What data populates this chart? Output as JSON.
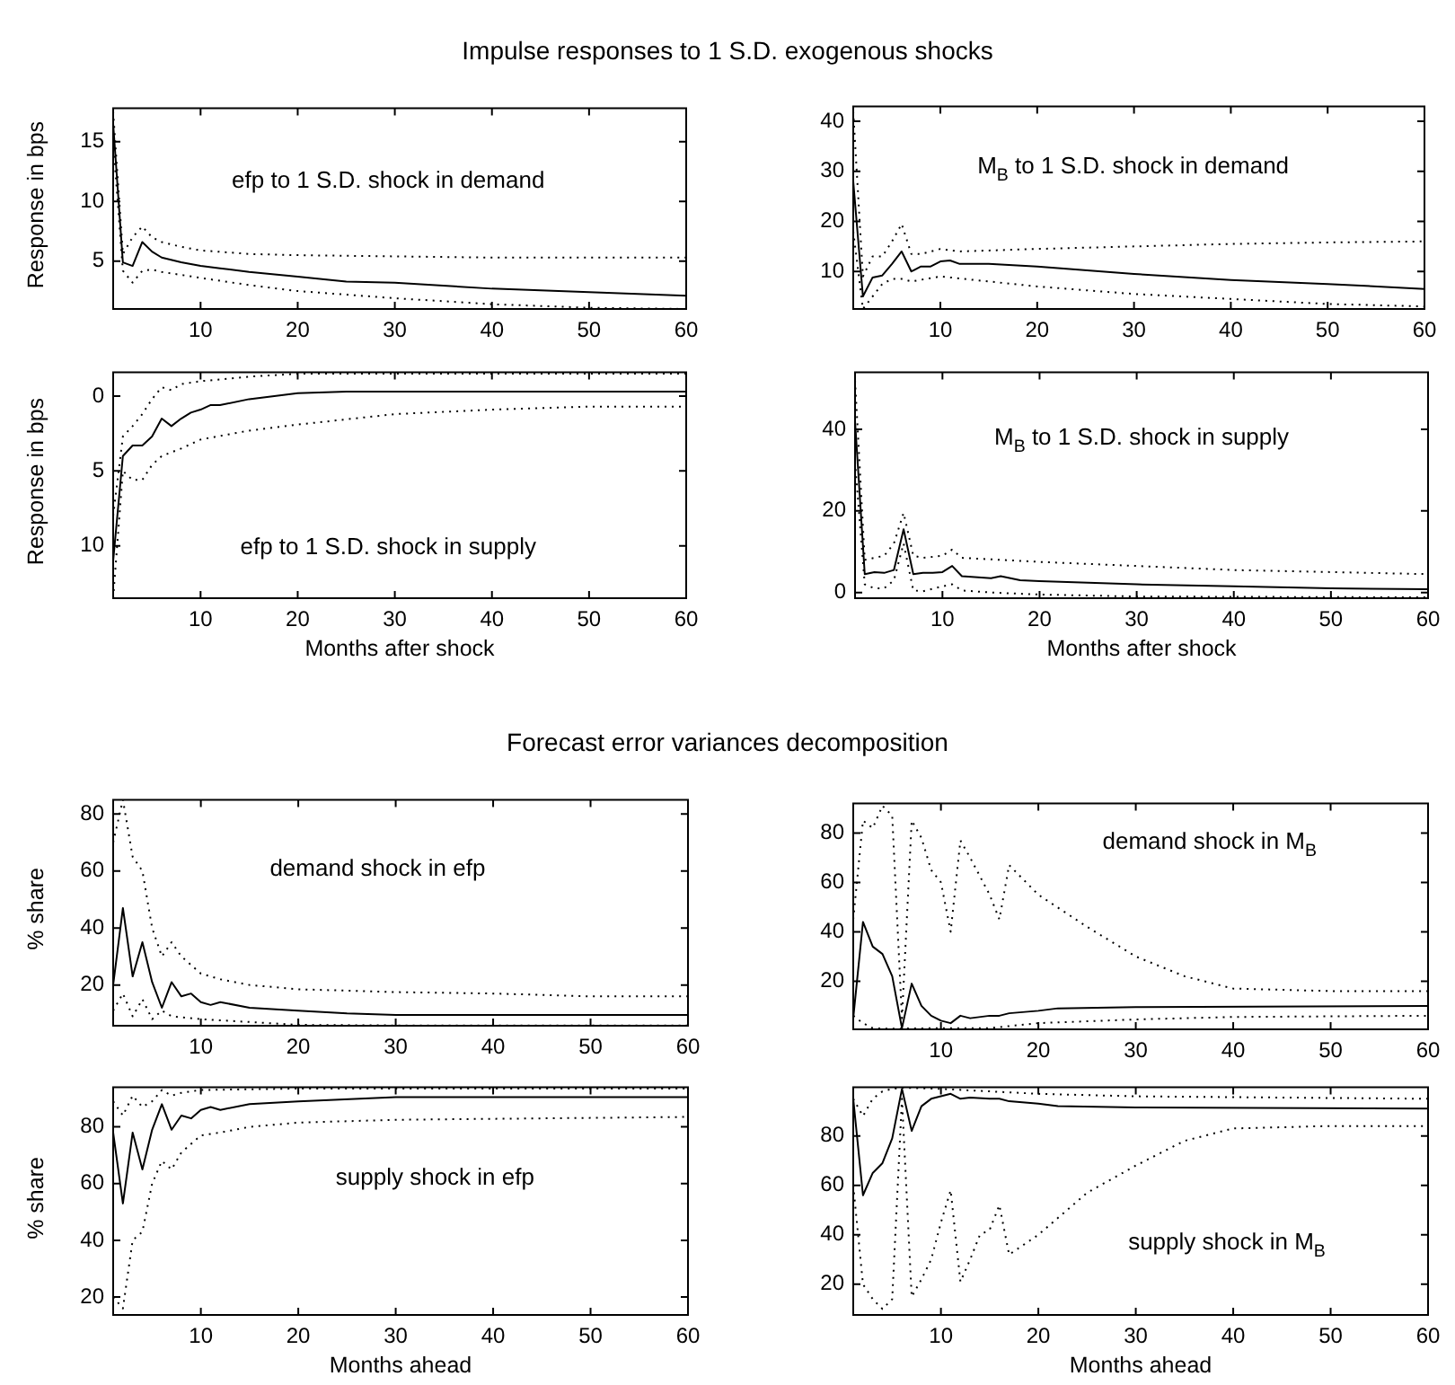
{
  "chart_data": [
    {
      "type": "line",
      "title": "Impulse responses to 1 S.D. exogenous shocks",
      "ylabel": "Response in bps",
      "annotations": [
        "efp to 1 S.D. shock in demand"
      ],
      "xlim": [
        1,
        60
      ],
      "xticks": [
        10,
        20,
        30,
        40,
        50,
        60
      ],
      "ylim": [
        1,
        17.8
      ],
      "yticks": [
        5,
        10,
        15
      ],
      "series": [
        {
          "color": "#000000",
          "line_style": "solid",
          "x": [
            1,
            2,
            3,
            4,
            5,
            6,
            8,
            10,
            12,
            15,
            20,
            25,
            30,
            40,
            50,
            60
          ],
          "values": [
            16.5,
            4.9,
            4.6,
            6.6,
            5.8,
            5.3,
            4.9,
            4.6,
            4.4,
            4.1,
            3.7,
            3.3,
            3.2,
            2.7,
            2.4,
            2.1
          ]
        },
        {
          "color": "#000000",
          "line_style": "dotted",
          "x": [
            1,
            2,
            3,
            4,
            5,
            6,
            8,
            10,
            15,
            20,
            30,
            40,
            60
          ],
          "values": [
            17.5,
            5.6,
            7,
            7.9,
            7,
            6.6,
            6.2,
            5.9,
            5.6,
            5.5,
            5.4,
            5.3,
            5.3
          ]
        },
        {
          "color": "#000000",
          "line_style": "dotted",
          "x": [
            1,
            2,
            3,
            4,
            5,
            6,
            10,
            15,
            20,
            30,
            40,
            50,
            60
          ],
          "values": [
            15,
            4.2,
            3.2,
            4.2,
            4.3,
            4.1,
            3.6,
            3.0,
            2.5,
            1.9,
            1.4,
            1.1,
            1.0
          ]
        }
      ]
    },
    {
      "type": "line",
      "ylabel": "Response in bps",
      "xlabel": "Months after shock",
      "annotations": [
        "efp to 1 S.D. shock in supply"
      ],
      "xlim": [
        1,
        60
      ],
      "xticks": [
        10,
        20,
        30,
        40,
        50,
        60
      ],
      "ylim": [
        13.5,
        -1.6
      ],
      "yticks": [
        0,
        5,
        10
      ],
      "series": [
        {
          "color": "#000000",
          "line_style": "solid",
          "x": [
            1,
            2,
            3,
            4,
            5,
            6,
            7,
            8,
            9,
            10,
            11,
            12,
            15,
            20,
            25,
            30,
            60
          ],
          "values": [
            11,
            4,
            3.3,
            3.3,
            2.7,
            1.5,
            2,
            1.5,
            1.1,
            0.9,
            0.6,
            0.6,
            0.2,
            -0.2,
            -0.3,
            -0.3,
            -0.3
          ]
        },
        {
          "color": "#000000",
          "line_style": "dotted",
          "x": [
            1,
            2,
            3,
            4,
            5,
            6,
            7,
            8,
            10,
            15,
            20,
            60
          ],
          "values": [
            8,
            2.7,
            2,
            1.2,
            0.2,
            -0.6,
            -0.4,
            -0.8,
            -1,
            -1.3,
            -1.5,
            -1.5
          ]
        },
        {
          "color": "#000000",
          "line_style": "dotted",
          "x": [
            1,
            2,
            3,
            4,
            5,
            6,
            8,
            10,
            15,
            20,
            30,
            40,
            50,
            60
          ],
          "values": [
            13.5,
            5,
            5.6,
            5.6,
            4.6,
            4,
            3.5,
            2.9,
            2.3,
            1.9,
            1.2,
            0.9,
            0.7,
            0.7
          ]
        }
      ]
    },
    {
      "type": "line",
      "annotations": [
        "M$_{B}$ to 1 S.D. shock in demand"
      ],
      "xlim": [
        1,
        60
      ],
      "xticks": [
        10,
        20,
        30,
        40,
        50,
        60
      ],
      "ylim": [
        2.5,
        43
      ],
      "yticks": [
        10,
        20,
        30,
        40
      ],
      "series": [
        {
          "color": "#000000",
          "line_style": "solid",
          "x": [
            1,
            2,
            3,
            4,
            5,
            6,
            7,
            8,
            9,
            10,
            11,
            12,
            15,
            20,
            30,
            40,
            50,
            60
          ],
          "values": [
            28,
            5,
            8.8,
            9.2,
            11.5,
            14,
            10,
            11,
            11,
            12,
            12.2,
            11.5,
            11.5,
            11,
            9.5,
            8.3,
            7.5,
            6.5
          ]
        },
        {
          "color": "#000000",
          "line_style": "dotted",
          "x": [
            1,
            2,
            3,
            4,
            5,
            6,
            7,
            8,
            10,
            12,
            20,
            30,
            40,
            50,
            60
          ],
          "values": [
            42,
            9,
            13,
            13,
            16,
            19.5,
            13.5,
            13.5,
            14.5,
            14,
            14.5,
            15,
            15.5,
            15.8,
            16
          ]
        },
        {
          "color": "#000000",
          "line_style": "dotted",
          "x": [
            1,
            2,
            3,
            4,
            5,
            6,
            7,
            10,
            15,
            20,
            30,
            40,
            50,
            60
          ],
          "values": [
            18,
            2.5,
            5,
            7.5,
            8.5,
            8.5,
            8,
            9,
            8,
            7,
            5.5,
            4.5,
            3.5,
            3
          ]
        }
      ]
    },
    {
      "type": "line",
      "xlabel": "Months after shock",
      "annotations": [
        "M$_{B}$ to 1 S.D. shock in supply"
      ],
      "xlim": [
        1,
        60
      ],
      "xticks": [
        10,
        20,
        30,
        40,
        50,
        60
      ],
      "ylim": [
        -1.4,
        54
      ],
      "yticks": [
        0,
        20,
        40
      ],
      "series": [
        {
          "color": "#000000",
          "line_style": "solid",
          "x": [
            1,
            2,
            3,
            4,
            5,
            6,
            7,
            8,
            9,
            10,
            11,
            12,
            15,
            16,
            18,
            20,
            30,
            40,
            50,
            60
          ],
          "values": [
            42,
            4.5,
            5,
            4.8,
            5.5,
            15.5,
            4.5,
            4.8,
            4.8,
            5,
            6.5,
            4,
            3.5,
            4,
            3,
            2.8,
            2,
            1.5,
            1,
            0.8
          ]
        },
        {
          "color": "#000000",
          "line_style": "dotted",
          "x": [
            1,
            2,
            3,
            4,
            5,
            6,
            7,
            8,
            10,
            11,
            12,
            20,
            30,
            40,
            50,
            60
          ],
          "values": [
            52,
            8,
            8.5,
            9,
            12,
            19.5,
            9,
            8.5,
            9,
            10.5,
            8.5,
            7.5,
            6.5,
            5.5,
            5,
            4.5
          ]
        },
        {
          "color": "#000000",
          "line_style": "dotted",
          "x": [
            1,
            2,
            3,
            4,
            5,
            6,
            7,
            8,
            10,
            11,
            12,
            15,
            20,
            30,
            60
          ],
          "values": [
            32,
            2,
            1,
            1,
            3,
            12,
            0.5,
            0.3,
            1.5,
            2,
            0.5,
            0,
            -0.5,
            -1,
            -1.2
          ]
        }
      ]
    },
    {
      "type": "line",
      "title": "Forecast error variances decomposition",
      "ylabel": "% share",
      "annotations": [
        "demand shock in  efp"
      ],
      "xlim": [
        1,
        60
      ],
      "xticks": [
        10,
        20,
        30,
        40,
        50,
        60
      ],
      "ylim": [
        5.7,
        85
      ],
      "yticks": [
        20,
        40,
        60,
        80
      ],
      "series": [
        {
          "color": "#000000",
          "line_style": "solid",
          "x": [
            1,
            2,
            3,
            4,
            5,
            6,
            7,
            8,
            9,
            10,
            11,
            12,
            15,
            20,
            25,
            30,
            60
          ],
          "values": [
            20,
            47,
            23,
            35,
            21,
            12,
            21,
            16,
            17,
            14,
            13,
            14,
            12,
            11,
            10,
            9.5,
            9.5
          ]
        },
        {
          "color": "#000000",
          "line_style": "dotted",
          "x": [
            1,
            2,
            3,
            4,
            5,
            6,
            7,
            8,
            10,
            12,
            15,
            20,
            30,
            40,
            50,
            60
          ],
          "values": [
            70,
            85,
            65,
            60,
            40,
            30,
            35,
            30,
            24,
            22,
            20,
            18.5,
            17.5,
            17,
            16,
            16
          ]
        },
        {
          "color": "#000000",
          "line_style": "dotted",
          "x": [
            1,
            2,
            3,
            4,
            5,
            6,
            7,
            10,
            15,
            20,
            30,
            60
          ],
          "values": [
            11,
            17,
            9,
            15,
            8,
            11,
            9,
            8,
            7,
            6,
            5.8,
            5.8
          ]
        }
      ]
    },
    {
      "type": "line",
      "ylabel": "% share",
      "xlabel": "Months ahead",
      "annotations": [
        "supply shock in  efp"
      ],
      "xlim": [
        1,
        60
      ],
      "xticks": [
        10,
        20,
        30,
        40,
        50,
        60
      ],
      "ylim": [
        13.7,
        94
      ],
      "yticks": [
        20,
        40,
        60,
        80
      ],
      "series": [
        {
          "color": "#000000",
          "line_style": "solid",
          "x": [
            1,
            2,
            3,
            4,
            5,
            6,
            7,
            8,
            9,
            10,
            11,
            12,
            15,
            20,
            30,
            60
          ],
          "values": [
            78,
            53,
            78,
            65,
            79,
            88,
            79,
            84,
            83,
            86,
            87,
            86,
            88,
            89,
            90.5,
            90.5
          ]
        },
        {
          "color": "#000000",
          "line_style": "dotted",
          "x": [
            1,
            2,
            3,
            4,
            5,
            6,
            7,
            8,
            10,
            20,
            60
          ],
          "values": [
            89,
            84,
            91,
            87,
            89,
            93,
            91,
            92,
            93,
            93.5,
            93.5
          ]
        },
        {
          "color": "#000000",
          "line_style": "dotted",
          "x": [
            1,
            2,
            3,
            4,
            5,
            6,
            7,
            8,
            10,
            12,
            15,
            20,
            30,
            60
          ],
          "values": [
            20,
            16,
            40,
            43,
            60,
            68,
            65,
            71,
            77,
            78,
            80,
            81.5,
            82.5,
            83.5
          ]
        }
      ]
    },
    {
      "type": "line",
      "annotations": [
        "demand shock in  M$_{B}$"
      ],
      "xlim": [
        1,
        60
      ],
      "xticks": [
        10,
        20,
        30,
        40,
        50,
        60
      ],
      "ylim": [
        0.5,
        92
      ],
      "yticks": [
        20,
        40,
        60,
        80
      ],
      "series": [
        {
          "color": "#000000",
          "line_style": "solid",
          "x": [
            1,
            2,
            3,
            4,
            5,
            6,
            7,
            8,
            9,
            10,
            11,
            12,
            13,
            15,
            16,
            17,
            20,
            22,
            30,
            60
          ],
          "values": [
            5,
            44,
            34,
            31,
            22,
            1,
            19,
            10,
            6,
            4,
            3,
            6,
            5,
            6,
            6,
            7,
            8,
            9,
            9.5,
            10
          ]
        },
        {
          "color": "#000000",
          "line_style": "dotted",
          "x": [
            1,
            2,
            3,
            4,
            5,
            6,
            7,
            8,
            9,
            10,
            11,
            12,
            13,
            15,
            16,
            17,
            20,
            25,
            30,
            35,
            40,
            50,
            60
          ],
          "values": [
            45,
            85,
            82,
            91,
            87,
            5,
            85,
            78,
            65,
            60,
            40,
            77,
            70,
            55,
            45,
            67,
            55,
            42,
            30,
            22,
            17,
            16,
            16
          ]
        },
        {
          "color": "#000000",
          "line_style": "dotted",
          "x": [
            1,
            2,
            3,
            4,
            6,
            10,
            15,
            20,
            30,
            40,
            60
          ],
          "values": [
            6,
            3,
            1,
            0.8,
            0.8,
            1,
            1,
            3,
            4.5,
            5.5,
            6
          ]
        }
      ]
    },
    {
      "type": "line",
      "xlabel": "Months ahead",
      "annotations": [
        "supply shock in  M$_{B}$"
      ],
      "xlim": [
        1,
        60
      ],
      "xticks": [
        10,
        20,
        30,
        40,
        50,
        60
      ],
      "ylim": [
        7.6,
        99.7
      ],
      "yticks": [
        20,
        40,
        60,
        80
      ],
      "series": [
        {
          "color": "#000000",
          "line_style": "solid",
          "x": [
            1,
            2,
            3,
            4,
            5,
            6,
            7,
            8,
            9,
            10,
            11,
            12,
            13,
            15,
            16,
            17,
            20,
            22,
            30,
            60
          ],
          "values": [
            95,
            56,
            65,
            69,
            79,
            99,
            82,
            92,
            95,
            96,
            97,
            95,
            95.5,
            95,
            95,
            94,
            93,
            92,
            91.5,
            91
          ]
        },
        {
          "color": "#000000",
          "line_style": "dotted",
          "x": [
            1,
            2,
            3,
            4,
            5,
            6,
            10,
            15,
            20,
            30,
            60
          ],
          "values": [
            95,
            88,
            95,
            98,
            99,
            99.5,
            99,
            98,
            97,
            96,
            95
          ]
        },
        {
          "color": "#000000",
          "line_style": "dotted",
          "x": [
            1,
            2,
            3,
            4,
            5,
            6,
            7,
            8,
            9,
            10,
            11,
            12,
            13,
            14,
            15,
            16,
            17,
            20,
            25,
            30,
            35,
            40,
            50,
            60
          ],
          "values": [
            60,
            20,
            14,
            10,
            14,
            95,
            15,
            22,
            30,
            45,
            58,
            21,
            30,
            40,
            42,
            52,
            32,
            40,
            57,
            68,
            78,
            83,
            84,
            84
          ]
        }
      ]
    }
  ]
}
